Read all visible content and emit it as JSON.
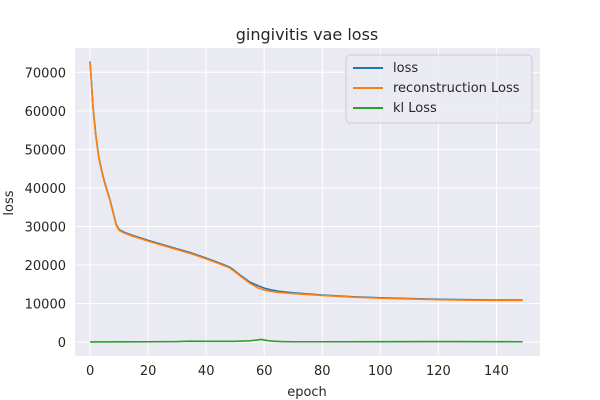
{
  "chart_data": {
    "type": "line",
    "title": "gingivitis vae loss",
    "xlabel": "epoch",
    "ylabel": "loss",
    "xlim": [
      -5.2,
      155
    ],
    "ylim": [
      -3600,
      76300
    ],
    "xticks": [
      0,
      20,
      40,
      60,
      80,
      100,
      120,
      140
    ],
    "yticks": [
      0,
      10000,
      20000,
      30000,
      40000,
      50000,
      60000,
      70000
    ],
    "grid": true,
    "legend_position": "upper right",
    "series": [
      {
        "name": "loss",
        "color": "#1f77b4",
        "x": [
          0,
          1,
          2,
          3,
          4,
          5,
          6,
          7,
          8,
          9,
          10,
          11,
          12,
          15,
          20,
          25,
          30,
          35,
          40,
          45,
          48,
          50,
          52,
          55,
          58,
          60,
          62,
          65,
          70,
          80,
          90,
          100,
          110,
          120,
          130,
          140,
          149
        ],
        "y": [
          72800,
          61000,
          53500,
          48000,
          44500,
          41500,
          39000,
          36500,
          33500,
          30500,
          29200,
          28800,
          28400,
          27600,
          26400,
          25300,
          24200,
          23100,
          21800,
          20400,
          19500,
          18400,
          17200,
          15600,
          14600,
          14000,
          13600,
          13200,
          12800,
          12200,
          11800,
          11500,
          11300,
          11100,
          11000,
          10900,
          10900
        ]
      },
      {
        "name": "reconstruction Loss",
        "color": "#ff7f0e",
        "x": [
          0,
          1,
          2,
          3,
          4,
          5,
          6,
          7,
          8,
          9,
          10,
          11,
          12,
          15,
          20,
          25,
          30,
          35,
          40,
          45,
          48,
          50,
          52,
          55,
          58,
          60,
          62,
          65,
          70,
          80,
          90,
          100,
          110,
          120,
          130,
          140,
          149
        ],
        "y": [
          72600,
          60800,
          53300,
          47800,
          44300,
          41300,
          38800,
          36300,
          33300,
          30300,
          29000,
          28600,
          28200,
          27400,
          26200,
          25100,
          24000,
          22900,
          21600,
          20200,
          19300,
          18200,
          17000,
          15300,
          14000,
          13500,
          13200,
          12900,
          12600,
          12100,
          11700,
          11400,
          11200,
          11000,
          10900,
          10800,
          10800
        ]
      },
      {
        "name": "kl Loss",
        "color": "#2ca02c",
        "x": [
          0,
          10,
          20,
          30,
          34,
          40,
          50,
          55,
          57,
          59,
          61,
          63,
          66,
          70,
          80,
          100,
          120,
          140,
          149
        ],
        "y": [
          50,
          80,
          100,
          150,
          250,
          200,
          200,
          350,
          500,
          700,
          400,
          250,
          150,
          100,
          100,
          120,
          150,
          120,
          100
        ]
      }
    ]
  }
}
